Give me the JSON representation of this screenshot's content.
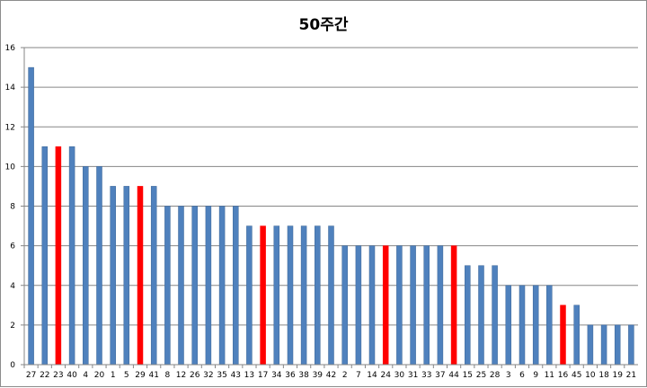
{
  "chart_data": {
    "type": "bar",
    "title": "50주간",
    "xlabel": "",
    "ylabel": "",
    "ylim": [
      0,
      16
    ],
    "yticks": [
      0,
      2,
      4,
      6,
      8,
      10,
      12,
      14,
      16
    ],
    "grid": true,
    "legend": "none",
    "categories": [
      "27",
      "22",
      "23",
      "40",
      "4",
      "20",
      "1",
      "5",
      "29",
      "41",
      "8",
      "12",
      "26",
      "32",
      "35",
      "43",
      "13",
      "17",
      "34",
      "36",
      "38",
      "39",
      "42",
      "2",
      "7",
      "14",
      "24",
      "30",
      "31",
      "33",
      "37",
      "44",
      "15",
      "25",
      "28",
      "3",
      "6",
      "9",
      "11",
      "16",
      "45",
      "10",
      "18",
      "19",
      "21"
    ],
    "values": [
      15,
      11,
      11,
      11,
      10,
      10,
      9,
      9,
      9,
      9,
      8,
      8,
      8,
      8,
      8,
      8,
      7,
      7,
      7,
      7,
      7,
      7,
      7,
      6,
      6,
      6,
      6,
      6,
      6,
      6,
      6,
      6,
      5,
      5,
      5,
      4,
      4,
      4,
      4,
      3,
      3,
      2,
      2,
      2,
      2
    ],
    "highlighted": [
      "23",
      "29",
      "17",
      "24",
      "44",
      "16"
    ],
    "colors": {
      "bar": "#4f81bd",
      "bar_border": "#3a6496",
      "highlight": "#ff0000",
      "grid": "#868686",
      "axis": "#868686"
    }
  }
}
